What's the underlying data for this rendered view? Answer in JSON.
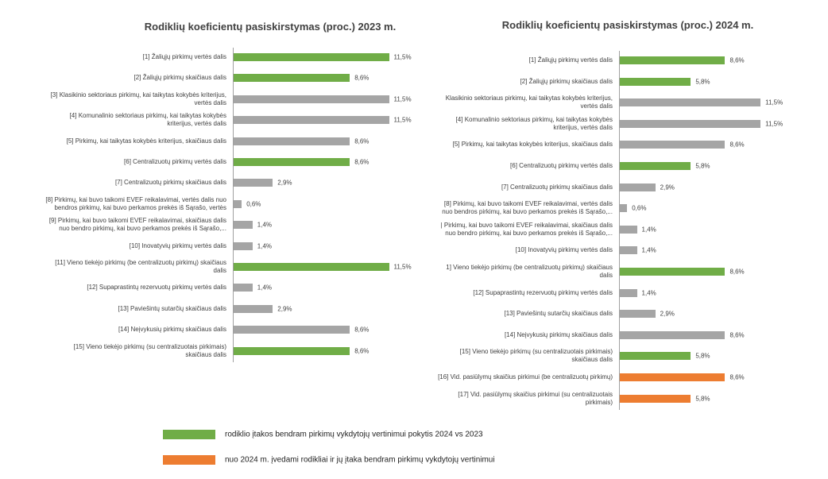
{
  "chart_data": [
    {
      "type": "bar",
      "orientation": "horizontal",
      "title": "Rodiklių koeficientų pasiskirstymas (proc.) 2023 m.",
      "categories": [
        "[1] Žaliųjų pirkimų vertės dalis",
        "[2] Žaliųjų pirkimų skaičiaus dalis",
        "[3] Klasikinio sektoriaus pirkimų, kai taikytas kokybės kriterijus,\nvertės dalis",
        "[4] Komunalinio sektoriaus pirkimų, kai taikytas kokybės\nkriterijus, vertės dalis",
        "[5] Pirkimų, kai taikytas kokybės kriterijus, skaičiaus dalis",
        "[6] Centralizuotų pirkimų vertės dalis",
        "[7] Centralizuotų pirkimų skaičiaus dalis",
        "[8] Pirkimų, kai buvo taikomi EVEF reikalavimai, vertės dalis nuo\nbendros pirkimų, kai buvo perkamos prekės iš Sąrašo, vertės",
        "[9] Pirkimų, kai buvo taikomi EVEF reikalavimai, skaičiaus dalis\nnuo bendro pirkimų, kai buvo perkamos prekės iš Sąrašo,...",
        "[10] Inovatyvių pirkimų vertės dalis",
        "[11] Vieno tiekėjo pirkimų (be centralizuotų pirkimų) skaičiaus\ndalis",
        "[12] Supaprastintų rezervuotų pirkimų vertės dalis",
        "[13] Paviešintų sutarčių skaičiaus dalis",
        "[14] Neįvykusių pirkimų skaičiaus dalis",
        "[15] Vieno tiekėjo pirkimų (su centralizuotais pirkimais)\nskaičiaus dalis"
      ],
      "values": [
        11.5,
        8.6,
        11.5,
        11.5,
        8.6,
        8.6,
        2.9,
        0.6,
        1.4,
        1.4,
        11.5,
        1.4,
        2.9,
        8.6,
        8.6
      ],
      "value_labels": [
        "11,5%",
        "8,6%",
        "11,5%",
        "11,5%",
        "8,6%",
        "8,6%",
        "2,9%",
        "0,6%",
        "1,4%",
        "1,4%",
        "11,5%",
        "1,4%",
        "2,9%",
        "8,6%",
        "8,6%"
      ],
      "colors": [
        "#70ad47",
        "#70ad47",
        "#a5a5a5",
        "#a5a5a5",
        "#a5a5a5",
        "#70ad47",
        "#a5a5a5",
        "#a5a5a5",
        "#a5a5a5",
        "#a5a5a5",
        "#70ad47",
        "#a5a5a5",
        "#a5a5a5",
        "#a5a5a5",
        "#70ad47"
      ]
    },
    {
      "type": "bar",
      "orientation": "horizontal",
      "title": "Rodiklių koeficientų pasiskirstymas (proc.) 2024 m.",
      "categories": [
        "[1] Žaliųjų pirkimų vertės dalis",
        "[2] Žaliųjų pirkimų skaičiaus dalis",
        "Klasikinio sektoriaus pirkimų, kai taikytas kokybės kriterijus,\nvertės dalis",
        "[4] Komunalinio sektoriaus pirkimų, kai taikytas kokybės\nkriterijus, vertės dalis",
        "[5] Pirkimų, kai taikytas kokybės kriterijus, skaičiaus dalis",
        "[6] Centralizuotų pirkimų vertės dalis",
        "[7] Centralizuotų pirkimų skaičiaus dalis",
        "[8] Pirkimų, kai buvo taikomi EVEF reikalavimai, vertės dalis\nnuo bendros pirkimų, kai buvo perkamos prekės iš Sąrašo,...",
        "| Pirkimų, kai buvo taikomi EVEF reikalavimai, skaičiaus dalis\nnuo bendro pirkimų, kai buvo perkamos prekės iš Sąrašo,...",
        "[10] Inovatyvių pirkimų vertės dalis",
        "1] Vieno tiekėjo pirkimų (be centralizuotų pirkimų) skaičiaus\ndalis",
        "[12] Supaprastintų rezervuotų pirkimų vertės dalis",
        "[13] Paviešintų sutarčių skaičiaus dalis",
        "[14] Neįvykusių pirkimų skaičiaus dalis",
        "[15] Vieno tiekėjo pirkimų (su centralizuotais pirkimais)\nskaičiaus dalis",
        "[16] Vid. pasiūlymų skaičius pirkimui (be centralizuotų pirkimų)",
        "[17] Vid. pasiūlymų skaičius pirkimui (su centralizuotais\npirkimais)"
      ],
      "values": [
        8.6,
        5.8,
        11.5,
        11.5,
        8.6,
        5.8,
        2.9,
        0.6,
        1.4,
        1.4,
        8.6,
        1.4,
        2.9,
        8.6,
        5.8,
        8.6,
        5.8
      ],
      "value_labels": [
        "8,6%",
        "5,8%",
        "11,5%",
        "11,5%",
        "8,6%",
        "5,8%",
        "2,9%",
        "0,6%",
        "1,4%",
        "1,4%",
        "8,6%",
        "1,4%",
        "2,9%",
        "8,6%",
        "5,8%",
        "8,6%",
        "5,8%"
      ],
      "colors": [
        "#70ad47",
        "#70ad47",
        "#a5a5a5",
        "#a5a5a5",
        "#a5a5a5",
        "#70ad47",
        "#a5a5a5",
        "#a5a5a5",
        "#a5a5a5",
        "#a5a5a5",
        "#70ad47",
        "#a5a5a5",
        "#a5a5a5",
        "#a5a5a5",
        "#70ad47",
        "#ed7d31",
        "#ed7d31"
      ]
    }
  ],
  "legend": [
    {
      "color": "#70ad47",
      "label": "rodiklio įtakos bendram pirkimų vykdytojų vertinimui pokytis 2024 vs 2023"
    },
    {
      "color": "#ed7d31",
      "label": "nuo 2024 m. įvedami rodikliai ir jų įtaka bendram pirkimų vykdytojų vertinimui"
    }
  ]
}
